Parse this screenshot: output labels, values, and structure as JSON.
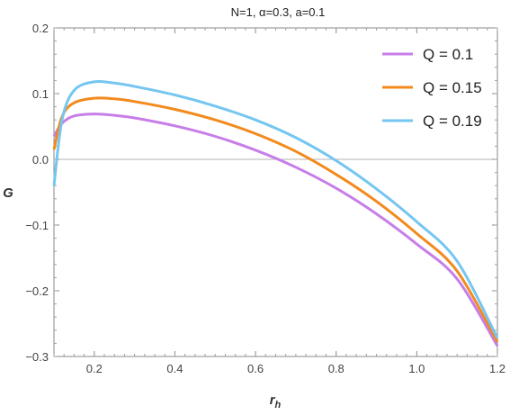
{
  "chart_data": {
    "type": "line",
    "title": "N=1, α=0.3, a=0.1",
    "xlabel": "r",
    "xlabel_sub": "h",
    "ylabel": "G",
    "xlim": [
      0.1,
      1.2
    ],
    "ylim": [
      -0.3,
      0.2
    ],
    "x_ticks": [
      0.2,
      0.4,
      0.6,
      0.8,
      1.0,
      1.2
    ],
    "x_tick_labels": [
      "0.2",
      "0.4",
      "0.6",
      "0.8",
      "1.0",
      "1.2"
    ],
    "y_ticks": [
      -0.3,
      -0.2,
      -0.1,
      0.0,
      0.1,
      0.2
    ],
    "y_tick_labels": [
      "−0.3",
      "−0.2",
      "−0.1",
      "0.0",
      "0.1",
      "0.2"
    ],
    "zero_line": true,
    "grid": false,
    "legend_position": "top-right",
    "series": [
      {
        "name": "Q = 0.1",
        "color": "#c77ee8",
        "x": [
          0.1,
          0.12,
          0.15,
          0.2,
          0.25,
          0.3,
          0.4,
          0.5,
          0.6,
          0.7,
          0.8,
          0.9,
          1.0,
          1.1,
          1.2
        ],
        "y": [
          0.035,
          0.055,
          0.066,
          0.069,
          0.067,
          0.063,
          0.051,
          0.035,
          0.014,
          -0.012,
          -0.044,
          -0.083,
          -0.129,
          -0.182,
          -0.284
        ]
      },
      {
        "name": "Q = 0.15",
        "color": "#f28a1e",
        "x": [
          0.1,
          0.12,
          0.15,
          0.2,
          0.25,
          0.3,
          0.4,
          0.5,
          0.6,
          0.7,
          0.8,
          0.9,
          1.0,
          1.1,
          1.2
        ],
        "y": [
          0.015,
          0.065,
          0.086,
          0.093,
          0.092,
          0.088,
          0.076,
          0.06,
          0.039,
          0.012,
          -0.023,
          -0.064,
          -0.113,
          -0.17,
          -0.278
        ]
      },
      {
        "name": "Q = 0.19",
        "color": "#75c6f0",
        "x": [
          0.1,
          0.12,
          0.15,
          0.2,
          0.25,
          0.3,
          0.4,
          0.5,
          0.6,
          0.7,
          0.8,
          0.9,
          1.0,
          1.1,
          1.2
        ],
        "y": [
          -0.04,
          0.06,
          0.105,
          0.118,
          0.116,
          0.111,
          0.098,
          0.081,
          0.06,
          0.033,
          -0.002,
          -0.045,
          -0.095,
          -0.155,
          -0.272
        ]
      }
    ]
  }
}
